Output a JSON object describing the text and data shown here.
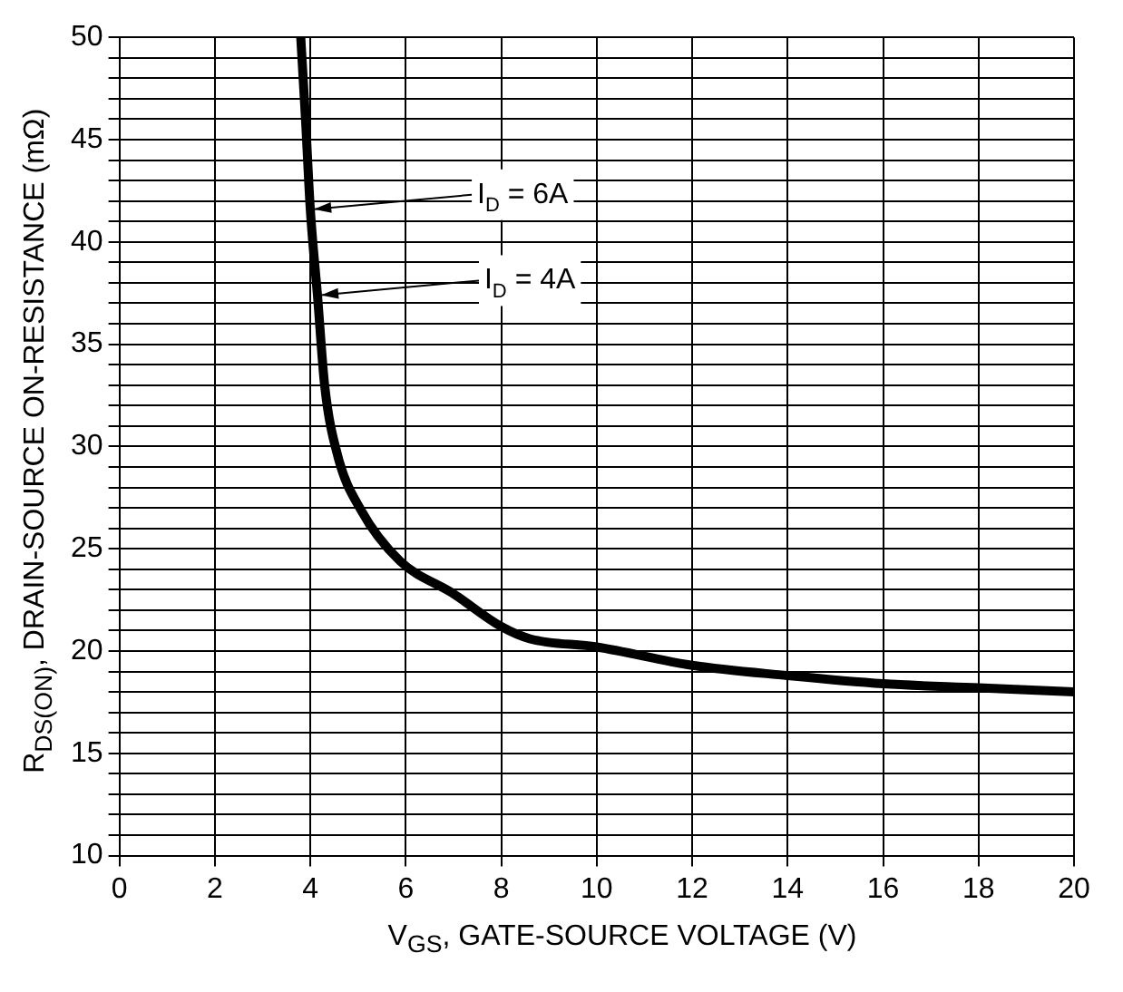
{
  "chart_data": {
    "type": "line",
    "xlabel": "V$_{GS}$, GATE-SOURCE VOLTAGE (V)",
    "ylabel": "R$_{DS(ON)}$, DRAIN-SOURCE ON-RESISTANCE (mΩ)",
    "series": [
      {
        "color": "#000000",
        "x": [
          3.8,
          3.9,
          4.0,
          4.15,
          4.3,
          4.58,
          5.06,
          5.88,
          7,
          8,
          8.6,
          10,
          12,
          14,
          16,
          18,
          20
        ],
        "values": [
          50,
          46,
          41.6,
          37.4,
          33,
          29.5,
          26.9,
          24.4,
          22.8,
          21.2,
          20.6,
          20.2,
          19.3,
          18.8,
          18.4,
          18.2,
          18.0
        ]
      }
    ],
    "xlim": [
      0,
      20
    ],
    "xticks": [
      0,
      2,
      4,
      6,
      8,
      10,
      12,
      14,
      16,
      18,
      20
    ],
    "ylim": [
      10,
      50
    ],
    "yticks": [
      10,
      {
        "value": 11,
        "label": null
      },
      {
        "value": 12,
        "label": null
      },
      {
        "value": 13,
        "label": null
      },
      {
        "value": 14,
        "label": null
      },
      15,
      {
        "value": 16,
        "label": null
      },
      {
        "value": 17,
        "label": null
      },
      {
        "value": 18,
        "label": null
      },
      {
        "value": 19,
        "label": null
      },
      20,
      {
        "value": 21,
        "label": null
      },
      {
        "value": 22,
        "label": null
      },
      {
        "value": 23,
        "label": null
      },
      {
        "value": 24,
        "label": null
      },
      25,
      {
        "value": 26,
        "label": null
      },
      {
        "value": 27,
        "label": null
      },
      {
        "value": 28,
        "label": null
      },
      {
        "value": 29,
        "label": null
      },
      30,
      {
        "value": 31,
        "label": null
      },
      {
        "value": 32,
        "label": null
      },
      {
        "value": 33,
        "label": null
      },
      {
        "value": 34,
        "label": null
      },
      35,
      {
        "value": 36,
        "label": null
      },
      {
        "value": 37,
        "label": null
      },
      {
        "value": 38,
        "label": null
      },
      {
        "value": 39,
        "label": null
      },
      40,
      {
        "value": 41,
        "label": null
      },
      {
        "value": 42,
        "label": null
      },
      {
        "value": 43,
        "label": null
      },
      {
        "value": 44,
        "label": null
      },
      45,
      {
        "value": 46,
        "label": null
      },
      {
        "value": 47,
        "label": null
      },
      {
        "value": 48,
        "label": null
      },
      {
        "value": 49,
        "label": null
      },
      50
    ],
    "grid": true,
    "legend": false,
    "marker": "none",
    "line_style": "solid",
    "annotations": [
      {
        "text": "I$_{D}$ = 6A",
        "x": 4.0,
        "y": 41.6
      },
      {
        "text": "I$_{D}$ = 4A",
        "x": 4.15,
        "y": 37.4
      }
    ]
  }
}
